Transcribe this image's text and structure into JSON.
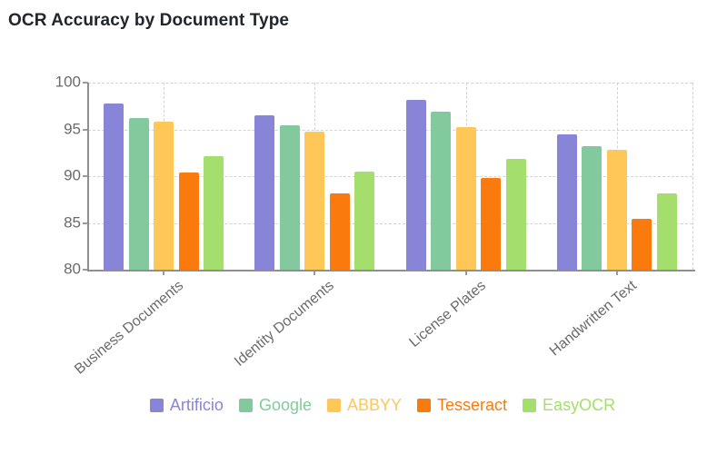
{
  "colors": {
    "title_text": "#22252e",
    "axis_line": "#8f8f8f",
    "tick_text": "#6b6b6b",
    "gridline": "#d3d3d3",
    "background": "#ffffff"
  },
  "chart_data": {
    "type": "bar",
    "title": "OCR Accuracy by Document Type",
    "xlabel": "",
    "ylabel": "",
    "categories": [
      "Business Documents",
      "Identity Documents",
      "License Plates",
      "Handwritten Text"
    ],
    "series": [
      {
        "name": "Artificio",
        "color": "#8884d8",
        "values": [
          97.8,
          96.5,
          98.2,
          94.5
        ]
      },
      {
        "name": "Google",
        "color": "#82ca9d",
        "values": [
          96.2,
          95.4,
          96.9,
          93.2
        ]
      },
      {
        "name": "ABBYY",
        "color": "#ffc658",
        "values": [
          95.8,
          94.8,
          95.2,
          92.8
        ]
      },
      {
        "name": "Tesseract",
        "color": "#fb7a0e",
        "values": [
          90.4,
          88.2,
          89.8,
          85.4
        ]
      },
      {
        "name": "EasyOCR",
        "color": "#a4de6c",
        "values": [
          92.1,
          90.5,
          91.8,
          88.2
        ]
      }
    ],
    "ylim": [
      80,
      100
    ],
    "yticks": [
      80,
      85,
      90,
      95,
      100
    ],
    "grid": "dashed",
    "legend_position": "bottom"
  }
}
